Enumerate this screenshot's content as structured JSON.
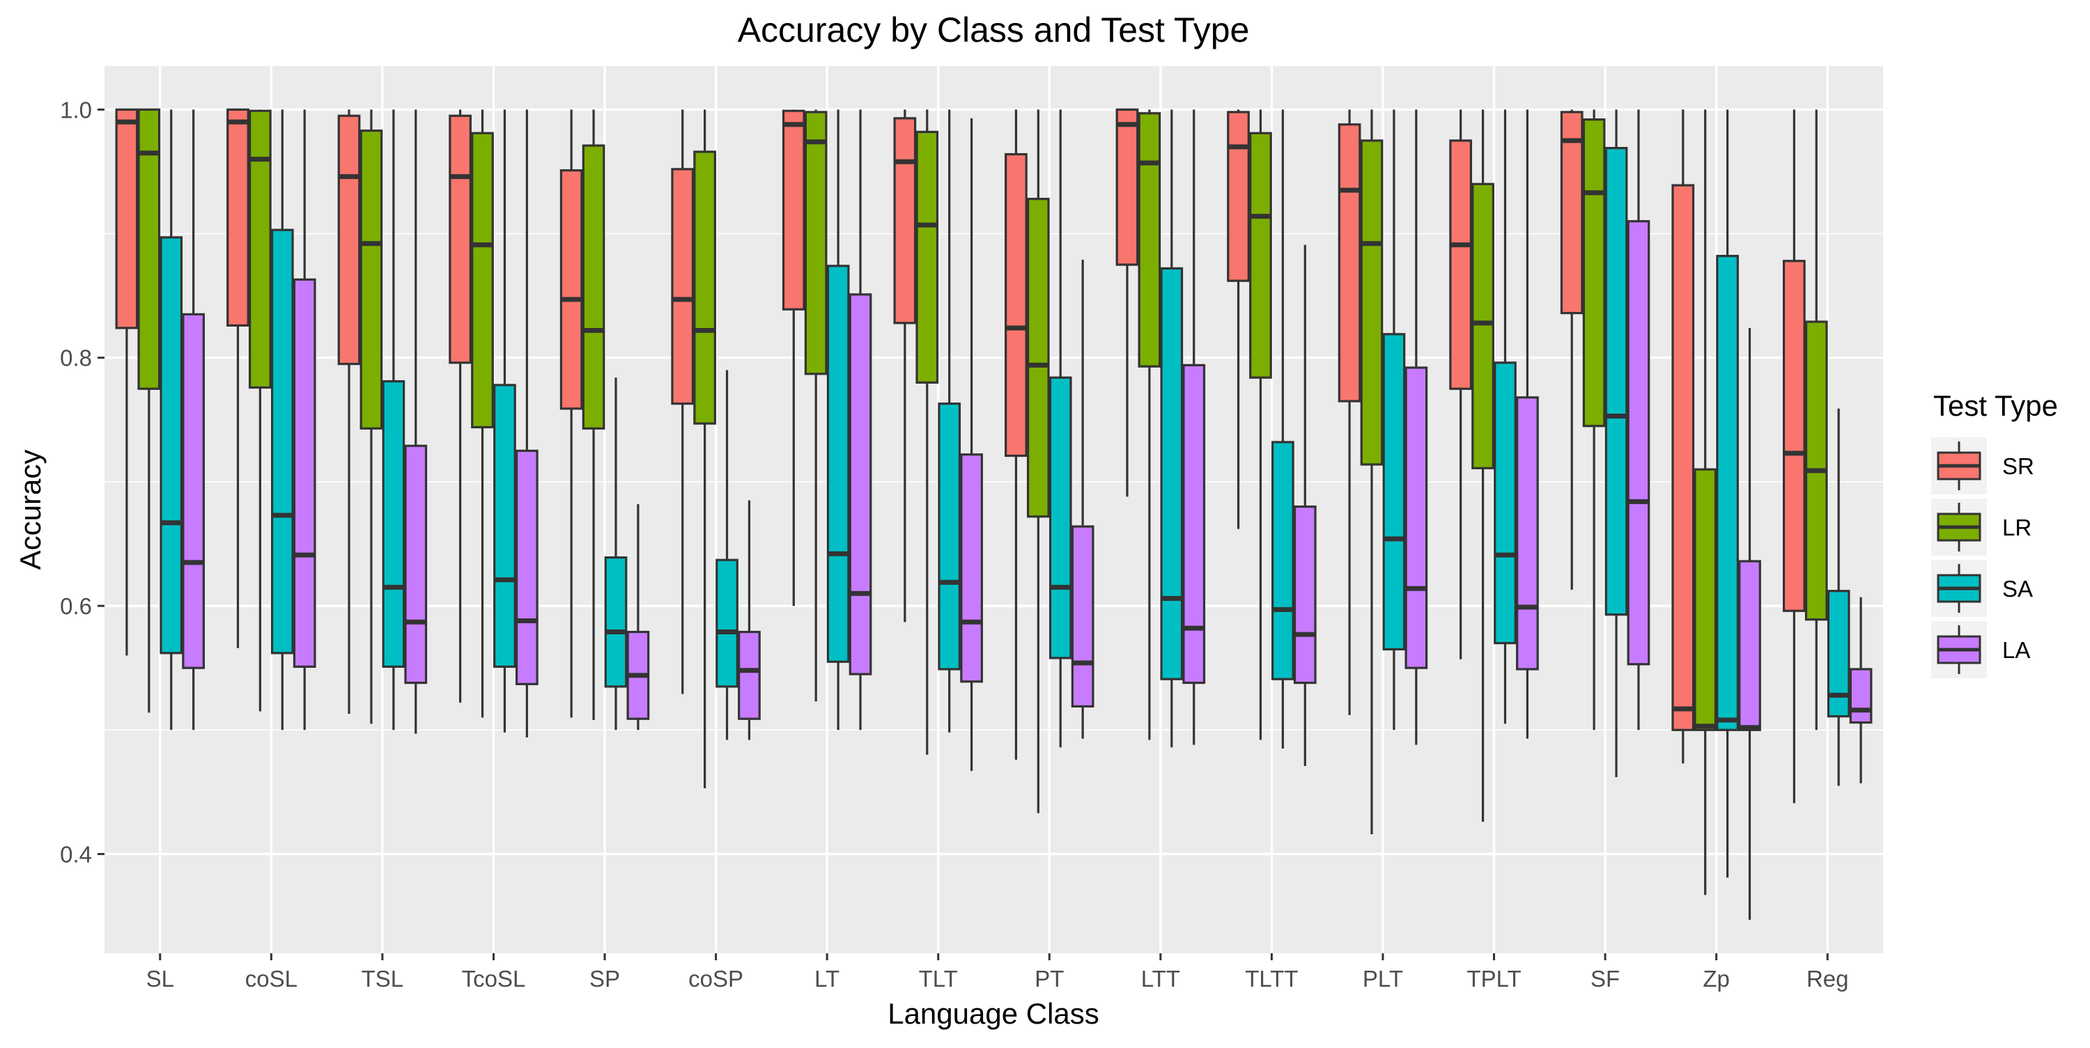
{
  "chart_data": {
    "type": "boxplot",
    "title": "Accuracy by Class and Test Type",
    "xlabel": "Language Class",
    "ylabel": "Accuracy",
    "ylim": [
      0.32,
      1.035
    ],
    "yticks": [
      0.4,
      0.6,
      0.8,
      1.0
    ],
    "ytick_labels": [
      "0.4",
      "0.6",
      "0.8",
      "1.0"
    ],
    "grid": true,
    "legend": {
      "title": "Test Type",
      "position": "right"
    },
    "categories": [
      "SL",
      "coSL",
      "TSL",
      "TcoSL",
      "SP",
      "coSP",
      "LT",
      "TLT",
      "PT",
      "LTT",
      "TLTT",
      "PLT",
      "TPLT",
      "SF",
      "Zp",
      "Reg"
    ],
    "series": [
      {
        "name": "SR",
        "color": "#F8766D",
        "stats": [
          [
            0.56,
            0.824,
            0.99,
            1.0,
            1.0
          ],
          [
            0.566,
            0.826,
            0.99,
            1.0,
            1.0
          ],
          [
            0.513,
            0.795,
            0.946,
            0.995,
            1.0
          ],
          [
            0.522,
            0.796,
            0.946,
            0.995,
            1.0
          ],
          [
            0.51,
            0.759,
            0.847,
            0.951,
            1.0
          ],
          [
            0.529,
            0.763,
            0.847,
            0.952,
            1.0
          ],
          [
            0.6,
            0.839,
            0.988,
            0.999,
            1.0
          ],
          [
            0.587,
            0.828,
            0.958,
            0.993,
            1.0
          ],
          [
            0.476,
            0.721,
            0.824,
            0.964,
            1.0
          ],
          [
            0.688,
            0.875,
            0.988,
            1.0,
            1.0
          ],
          [
            0.662,
            0.862,
            0.97,
            0.998,
            1.0
          ],
          [
            0.512,
            0.765,
            0.935,
            0.988,
            1.0
          ],
          [
            0.557,
            0.775,
            0.891,
            0.975,
            1.0
          ],
          [
            0.613,
            0.836,
            0.975,
            0.998,
            1.0
          ],
          [
            0.473,
            0.5,
            0.517,
            0.939,
            1.0
          ],
          [
            0.441,
            0.596,
            0.723,
            0.878,
            1.0
          ]
        ]
      },
      {
        "name": "LR",
        "color": "#7CAE00",
        "stats": [
          [
            0.514,
            0.775,
            0.965,
            1.0,
            1.0
          ],
          [
            0.515,
            0.776,
            0.96,
            0.999,
            1.0
          ],
          [
            0.505,
            0.743,
            0.892,
            0.983,
            1.0
          ],
          [
            0.51,
            0.744,
            0.891,
            0.981,
            1.0
          ],
          [
            0.508,
            0.743,
            0.822,
            0.971,
            1.0
          ],
          [
            0.453,
            0.747,
            0.822,
            0.966,
            1.0
          ],
          [
            0.523,
            0.787,
            0.974,
            0.998,
            1.0
          ],
          [
            0.48,
            0.78,
            0.907,
            0.982,
            1.0
          ],
          [
            0.433,
            0.672,
            0.794,
            0.928,
            1.0
          ],
          [
            0.492,
            0.793,
            0.957,
            0.997,
            1.0
          ],
          [
            0.492,
            0.784,
            0.914,
            0.981,
            1.0
          ],
          [
            0.416,
            0.714,
            0.892,
            0.975,
            1.0
          ],
          [
            0.426,
            0.711,
            0.828,
            0.94,
            1.0
          ],
          [
            0.5,
            0.745,
            0.933,
            0.992,
            1.0
          ],
          [
            0.367,
            0.5,
            0.503,
            0.71,
            1.0
          ],
          [
            0.5,
            0.589,
            0.709,
            0.829,
            1.0
          ]
        ]
      },
      {
        "name": "SA",
        "color": "#00BFC4",
        "stats": [
          [
            0.5,
            0.562,
            0.667,
            0.897,
            1.0
          ],
          [
            0.5,
            0.562,
            0.673,
            0.903,
            1.0
          ],
          [
            0.5,
            0.551,
            0.615,
            0.781,
            1.0
          ],
          [
            0.498,
            0.551,
            0.621,
            0.778,
            1.0
          ],
          [
            0.5,
            0.535,
            0.579,
            0.639,
            0.784
          ],
          [
            0.492,
            0.535,
            0.579,
            0.637,
            0.79
          ],
          [
            0.5,
            0.555,
            0.642,
            0.874,
            1.0
          ],
          [
            0.498,
            0.549,
            0.619,
            0.763,
            1.0
          ],
          [
            0.486,
            0.558,
            0.615,
            0.784,
            1.0
          ],
          [
            0.486,
            0.541,
            0.606,
            0.872,
            1.0
          ],
          [
            0.485,
            0.541,
            0.597,
            0.732,
            1.0
          ],
          [
            0.5,
            0.565,
            0.654,
            0.819,
            1.0
          ],
          [
            0.505,
            0.57,
            0.641,
            0.796,
            1.0
          ],
          [
            0.462,
            0.593,
            0.753,
            0.969,
            1.0
          ],
          [
            0.381,
            0.5,
            0.508,
            0.882,
            1.0
          ],
          [
            0.455,
            0.511,
            0.528,
            0.612,
            0.759
          ]
        ]
      },
      {
        "name": "LA",
        "color": "#C77CFF",
        "stats": [
          [
            0.5,
            0.55,
            0.635,
            0.835,
            1.0
          ],
          [
            0.5,
            0.551,
            0.641,
            0.863,
            1.0
          ],
          [
            0.497,
            0.538,
            0.587,
            0.729,
            1.0
          ],
          [
            0.494,
            0.537,
            0.588,
            0.725,
            1.0
          ],
          [
            0.5,
            0.509,
            0.544,
            0.579,
            0.682
          ],
          [
            0.492,
            0.509,
            0.548,
            0.579,
            0.685
          ],
          [
            0.5,
            0.545,
            0.61,
            0.851,
            1.0
          ],
          [
            0.467,
            0.539,
            0.587,
            0.722,
            0.993
          ],
          [
            0.493,
            0.519,
            0.554,
            0.664,
            0.879
          ],
          [
            0.488,
            0.538,
            0.582,
            0.794,
            1.0
          ],
          [
            0.471,
            0.538,
            0.577,
            0.68,
            0.891
          ],
          [
            0.488,
            0.55,
            0.614,
            0.792,
            1.0
          ],
          [
            0.493,
            0.549,
            0.599,
            0.768,
            1.0
          ],
          [
            0.5,
            0.553,
            0.684,
            0.91,
            1.0
          ],
          [
            0.347,
            0.5,
            0.502,
            0.636,
            0.824
          ],
          [
            0.457,
            0.506,
            0.516,
            0.549,
            0.607
          ]
        ]
      }
    ]
  }
}
